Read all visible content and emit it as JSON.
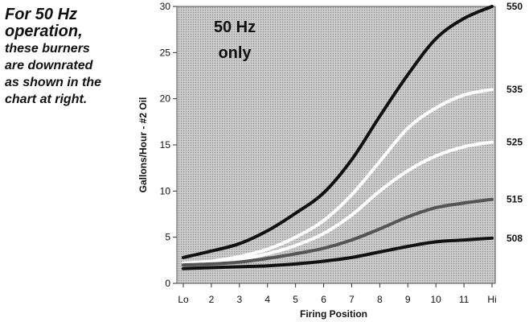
{
  "note": {
    "line1": "For 50 Hz",
    "line2": "operation,",
    "line3": "these burners",
    "line4": "are downrated",
    "line5": "as shown in the",
    "line6": "chart at right."
  },
  "chart_data": {
    "type": "line",
    "annotation": [
      "50 Hz",
      "only"
    ],
    "xlabel": "Firing Position",
    "ylabel": "Gallons/Hour - #2 Oil",
    "categories": [
      "Lo",
      "2",
      "3",
      "4",
      "5",
      "6",
      "7",
      "8",
      "9",
      "10",
      "11",
      "Hi"
    ],
    "ylim": [
      0,
      30
    ],
    "yticks": [
      0,
      5,
      10,
      15,
      20,
      25,
      30
    ],
    "grid": false,
    "background": "dotted gray",
    "series": [
      {
        "name": "550",
        "color": "#111111",
        "values": [
          2.8,
          3.5,
          4.3,
          5.7,
          7.6,
          9.8,
          13.4,
          18.1,
          22.6,
          26.5,
          28.7,
          30.0
        ]
      },
      {
        "name": "535",
        "color": "#ffffff",
        "values": [
          2.2,
          2.4,
          2.9,
          3.7,
          5.0,
          6.8,
          9.6,
          13.2,
          16.8,
          19.0,
          20.4,
          21.0
        ]
      },
      {
        "name": "525",
        "color": "#ffffff",
        "values": [
          2.1,
          2.2,
          2.6,
          3.2,
          4.1,
          5.4,
          7.4,
          10.0,
          12.2,
          13.8,
          14.8,
          15.3
        ]
      },
      {
        "name": "515",
        "color": "#555555",
        "values": [
          2.0,
          2.1,
          2.3,
          2.7,
          3.2,
          3.8,
          4.7,
          5.9,
          7.2,
          8.2,
          8.7,
          9.1
        ]
      },
      {
        "name": "508",
        "color": "#111111",
        "values": [
          1.6,
          1.7,
          1.8,
          1.9,
          2.1,
          2.4,
          2.8,
          3.4,
          4.0,
          4.5,
          4.7,
          4.9
        ]
      }
    ]
  }
}
